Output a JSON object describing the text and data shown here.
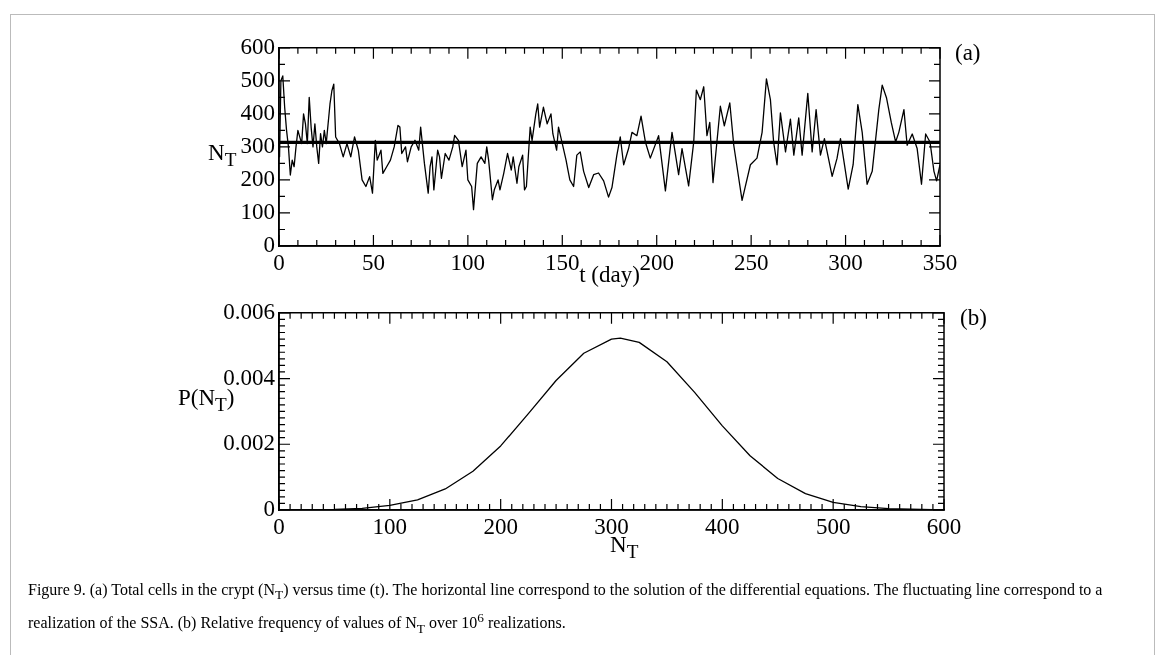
{
  "chart_data": [
    {
      "type": "line",
      "xlabel": "t (day)",
      "ylabel": "N$_{T}$",
      "annotations": [
        "(a)"
      ],
      "marker": "none",
      "grid": false,
      "legend": false,
      "xlim": [
        0,
        350
      ],
      "ylim": [
        0,
        600
      ],
      "xticks": [
        0,
        {
          "value": 10,
          "label": null
        },
        {
          "value": 20,
          "label": null
        },
        {
          "value": 30,
          "label": null
        },
        {
          "value": 40,
          "label": null
        },
        50,
        {
          "value": 60,
          "label": null
        },
        {
          "value": 70,
          "label": null
        },
        {
          "value": 80,
          "label": null
        },
        {
          "value": 90,
          "label": null
        },
        100,
        {
          "value": 110,
          "label": null
        },
        {
          "value": 120,
          "label": null
        },
        {
          "value": 130,
          "label": null
        },
        {
          "value": 140,
          "label": null
        },
        150,
        {
          "value": 160,
          "label": null
        },
        {
          "value": 170,
          "label": null
        },
        {
          "value": 180,
          "label": null
        },
        {
          "value": 190,
          "label": null
        },
        200,
        {
          "value": 210,
          "label": null
        },
        {
          "value": 220,
          "label": null
        },
        {
          "value": 230,
          "label": null
        },
        {
          "value": 240,
          "label": null
        },
        250,
        {
          "value": 260,
          "label": null
        },
        {
          "value": 270,
          "label": null
        },
        {
          "value": 280,
          "label": null
        },
        {
          "value": 290,
          "label": null
        },
        300,
        {
          "value": 310,
          "label": null
        },
        {
          "value": 320,
          "label": null
        },
        {
          "value": 330,
          "label": null
        },
        {
          "value": 340,
          "label": null
        },
        350
      ],
      "yticks": [
        0,
        {
          "value": 50,
          "label": null
        },
        100,
        {
          "value": 150,
          "label": null
        },
        200,
        {
          "value": 250,
          "label": null
        },
        300,
        {
          "value": 350,
          "label": null
        },
        400,
        {
          "value": 450,
          "label": null
        },
        500,
        {
          "value": 550,
          "label": null
        },
        600
      ],
      "series": [
        {
          "color": "#000000",
          "x": [
            0,
            0.3,
            1,
            2,
            3,
            4,
            5,
            6,
            7,
            8,
            9,
            10,
            12,
            13,
            14,
            15,
            16,
            17,
            18,
            19,
            20,
            21,
            22,
            23,
            24,
            25,
            27,
            28,
            29,
            30,
            32,
            34,
            36,
            38,
            40,
            42,
            44,
            46,
            48,
            49.5,
            51,
            52,
            54,
            55,
            57,
            59,
            61,
            63,
            64,
            65,
            67,
            68,
            70,
            72,
            74,
            75,
            77,
            79,
            80,
            81,
            82,
            84,
            85,
            86,
            88,
            90,
            92,
            93,
            95,
            97,
            99,
            100,
            102,
            103,
            105,
            107,
            109,
            110,
            111,
            113,
            114,
            116,
            117,
            119,
            121,
            123,
            124,
            126,
            127,
            129,
            130,
            131,
            133,
            134,
            136,
            137,
            138,
            140,
            142,
            144,
            145,
            147,
            148,
            150,
            152,
            153,
            154,
            156,
            157.7,
            159.5,
            161.3,
            164,
            166.6,
            169.2,
            171.9,
            174.5,
            176.3,
            178.9,
            180.7,
            182.5,
            185.1,
            186.9,
            189.5,
            191.7,
            194,
            196.6,
            201,
            204.6,
            208.1,
            211.6,
            213.4,
            216.9,
            219.6,
            221,
            223.1,
            224.9,
            226.6,
            228.1,
            229.8,
            233.7,
            235.8,
            238.7,
            240.8,
            245.2,
            249.6,
            253.1,
            255.8,
            258.1,
            260.2,
            261.9,
            263.7,
            265.5,
            268.2,
            270.8,
            272.6,
            275.2,
            277,
            280,
            282.3,
            284.4,
            286.7,
            288.8,
            292.9,
            295.5,
            297.3,
            301.4,
            304,
            306.5,
            308.8,
            311.4,
            314.1,
            317.6,
            319.4,
            321.7,
            324.2,
            326.5,
            328.2,
            330.9,
            332.6,
            335.3,
            337.9,
            340.2,
            342.4,
            344.7,
            346.8,
            348.2,
            350
          ],
          "values": [
            330,
            270,
            500,
            515,
            420,
            350,
            300,
            215,
            260,
            240,
            300,
            350,
            310,
            400,
            370,
            310,
            450,
            360,
            300,
            370,
            300,
            250,
            340,
            300,
            350,
            310,
            430,
            470,
            490,
            330,
            310,
            270,
            310,
            270,
            330,
            290,
            200,
            180,
            210,
            160,
            320,
            260,
            290,
            220,
            240,
            260,
            300,
            365,
            360,
            280,
            300,
            255,
            300,
            320,
            290,
            360,
            250,
            160,
            240,
            270,
            170,
            290,
            270,
            205,
            280,
            260,
            300,
            335,
            320,
            240,
            290,
            200,
            180,
            110,
            250,
            270,
            250,
            300,
            260,
            140,
            170,
            200,
            170,
            220,
            280,
            230,
            270,
            190,
            240,
            275,
            170,
            180,
            360,
            320,
            400,
            430,
            360,
            420,
            370,
            400,
            340,
            290,
            360,
            310,
            260,
            230,
            200,
            180,
            275,
            285,
            226,
            177,
            216,
            221,
            197,
            148,
            177,
            275,
            330,
            246,
            295,
            344,
            334,
            393,
            315,
            266,
            334,
            167,
            344,
            216,
            295,
            182,
            315,
            472,
            443,
            482,
            334,
            374,
            192,
            423,
            364,
            433,
            305,
            138,
            246,
            266,
            344,
            506,
            443,
            315,
            246,
            403,
            285,
            384,
            275,
            388,
            275,
            462,
            285,
            413,
            275,
            325,
            211,
            266,
            325,
            172,
            246,
            428,
            344,
            187,
            226,
            413,
            487,
            448,
            374,
            315,
            344,
            413,
            305,
            339,
            295,
            187,
            339,
            315,
            226,
            197,
            246
          ]
        },
        {
          "color": "#000000",
          "x": [
            0,
            350
          ],
          "values": [
            314,
            314
          ]
        }
      ]
    },
    {
      "type": "line",
      "xlabel": "N$_{T}$",
      "ylabel": "P(N$_{T}$)",
      "annotations": [
        "(b)",
        "Figure 9.  (a) Total cells in the crypt (N$_{T}$) versus time (t). The horizontal line correspond to the solution of the differential equations. The fluctuating line correspond to a realization of the SSA. (b) Relative frequency of values of N$_{T}$ over 10$^{6}$ realizations."
      ],
      "marker": "none",
      "grid": false,
      "legend": false,
      "xlim": [
        0,
        600
      ],
      "ylim": [
        0,
        0.006
      ],
      "xticks": [
        0,
        {
          "value": 10,
          "label": null
        },
        {
          "value": 20,
          "label": null
        },
        {
          "value": 30,
          "label": null
        },
        {
          "value": 40,
          "label": null
        },
        {
          "value": 50,
          "label": null
        },
        {
          "value": 60,
          "label": null
        },
        {
          "value": 70,
          "label": null
        },
        {
          "value": 80,
          "label": null
        },
        {
          "value": 90,
          "label": null
        },
        100,
        {
          "value": 110,
          "label": null
        },
        {
          "value": 120,
          "label": null
        },
        {
          "value": 130,
          "label": null
        },
        {
          "value": 140,
          "label": null
        },
        {
          "value": 150,
          "label": null
        },
        {
          "value": 160,
          "label": null
        },
        {
          "value": 170,
          "label": null
        },
        {
          "value": 180,
          "label": null
        },
        {
          "value": 190,
          "label": null
        },
        200,
        {
          "value": 210,
          "label": null
        },
        {
          "value": 220,
          "label": null
        },
        {
          "value": 230,
          "label": null
        },
        {
          "value": 240,
          "label": null
        },
        {
          "value": 250,
          "label": null
        },
        {
          "value": 260,
          "label": null
        },
        {
          "value": 270,
          "label": null
        },
        {
          "value": 280,
          "label": null
        },
        {
          "value": 290,
          "label": null
        },
        300,
        {
          "value": 310,
          "label": null
        },
        {
          "value": 320,
          "label": null
        },
        {
          "value": 330,
          "label": null
        },
        {
          "value": 340,
          "label": null
        },
        {
          "value": 350,
          "label": null
        },
        {
          "value": 360,
          "label": null
        },
        {
          "value": 370,
          "label": null
        },
        {
          "value": 380,
          "label": null
        },
        {
          "value": 390,
          "label": null
        },
        400,
        {
          "value": 410,
          "label": null
        },
        {
          "value": 420,
          "label": null
        },
        {
          "value": 430,
          "label": null
        },
        {
          "value": 440,
          "label": null
        },
        {
          "value": 450,
          "label": null
        },
        {
          "value": 460,
          "label": null
        },
        {
          "value": 470,
          "label": null
        },
        {
          "value": 480,
          "label": null
        },
        {
          "value": 490,
          "label": null
        },
        500,
        {
          "value": 510,
          "label": null
        },
        {
          "value": 520,
          "label": null
        },
        {
          "value": 530,
          "label": null
        },
        {
          "value": 540,
          "label": null
        },
        {
          "value": 550,
          "label": null
        },
        {
          "value": 560,
          "label": null
        },
        {
          "value": 570,
          "label": null
        },
        {
          "value": 580,
          "label": null
        },
        {
          "value": 590,
          "label": null
        },
        600
      ],
      "yticks": [
        0,
        {
          "value": 0.0002,
          "label": null
        },
        {
          "value": 0.0004,
          "label": null
        },
        {
          "value": 0.0006,
          "label": null
        },
        {
          "value": 0.0008,
          "label": null
        },
        {
          "value": 0.001,
          "label": null
        },
        {
          "value": 0.0012,
          "label": null
        },
        {
          "value": 0.0014,
          "label": null
        },
        {
          "value": 0.0016,
          "label": null
        },
        {
          "value": 0.0018,
          "label": null
        },
        0.002,
        {
          "value": 0.0022,
          "label": null
        },
        {
          "value": 0.0024,
          "label": null
        },
        {
          "value": 0.0026,
          "label": null
        },
        {
          "value": 0.0028,
          "label": null
        },
        {
          "value": 0.003,
          "label": null
        },
        {
          "value": 0.0032,
          "label": null
        },
        {
          "value": 0.0034,
          "label": null
        },
        {
          "value": 0.0036,
          "label": null
        },
        {
          "value": 0.0038,
          "label": null
        },
        0.004,
        {
          "value": 0.0042,
          "label": null
        },
        {
          "value": 0.0044,
          "label": null
        },
        {
          "value": 0.0046,
          "label": null
        },
        {
          "value": 0.0048,
          "label": null
        },
        {
          "value": 0.005,
          "label": null
        },
        {
          "value": 0.0052,
          "label": null
        },
        {
          "value": 0.0054,
          "label": null
        },
        {
          "value": 0.0056,
          "label": null
        },
        {
          "value": 0.0058,
          "label": null
        },
        0.006
      ],
      "x": [
        0,
        50,
        75,
        100,
        125,
        150,
        175,
        200,
        225,
        250,
        275,
        300,
        308,
        325,
        350,
        375,
        400,
        425,
        450,
        475,
        500,
        525,
        550,
        600
      ],
      "series": [
        {
          "color": "#000000",
          "values": [
            0,
            2e-05,
            5e-05,
            0.00014,
            0.00031,
            0.00064,
            0.00118,
            0.00195,
            0.00293,
            0.00394,
            0.00477,
            0.0052,
            0.00523,
            0.0051,
            0.00451,
            0.00358,
            0.00256,
            0.00165,
            0.00096,
            0.0005,
            0.00023,
            0.0001,
            4e-05,
            0
          ]
        }
      ]
    }
  ]
}
